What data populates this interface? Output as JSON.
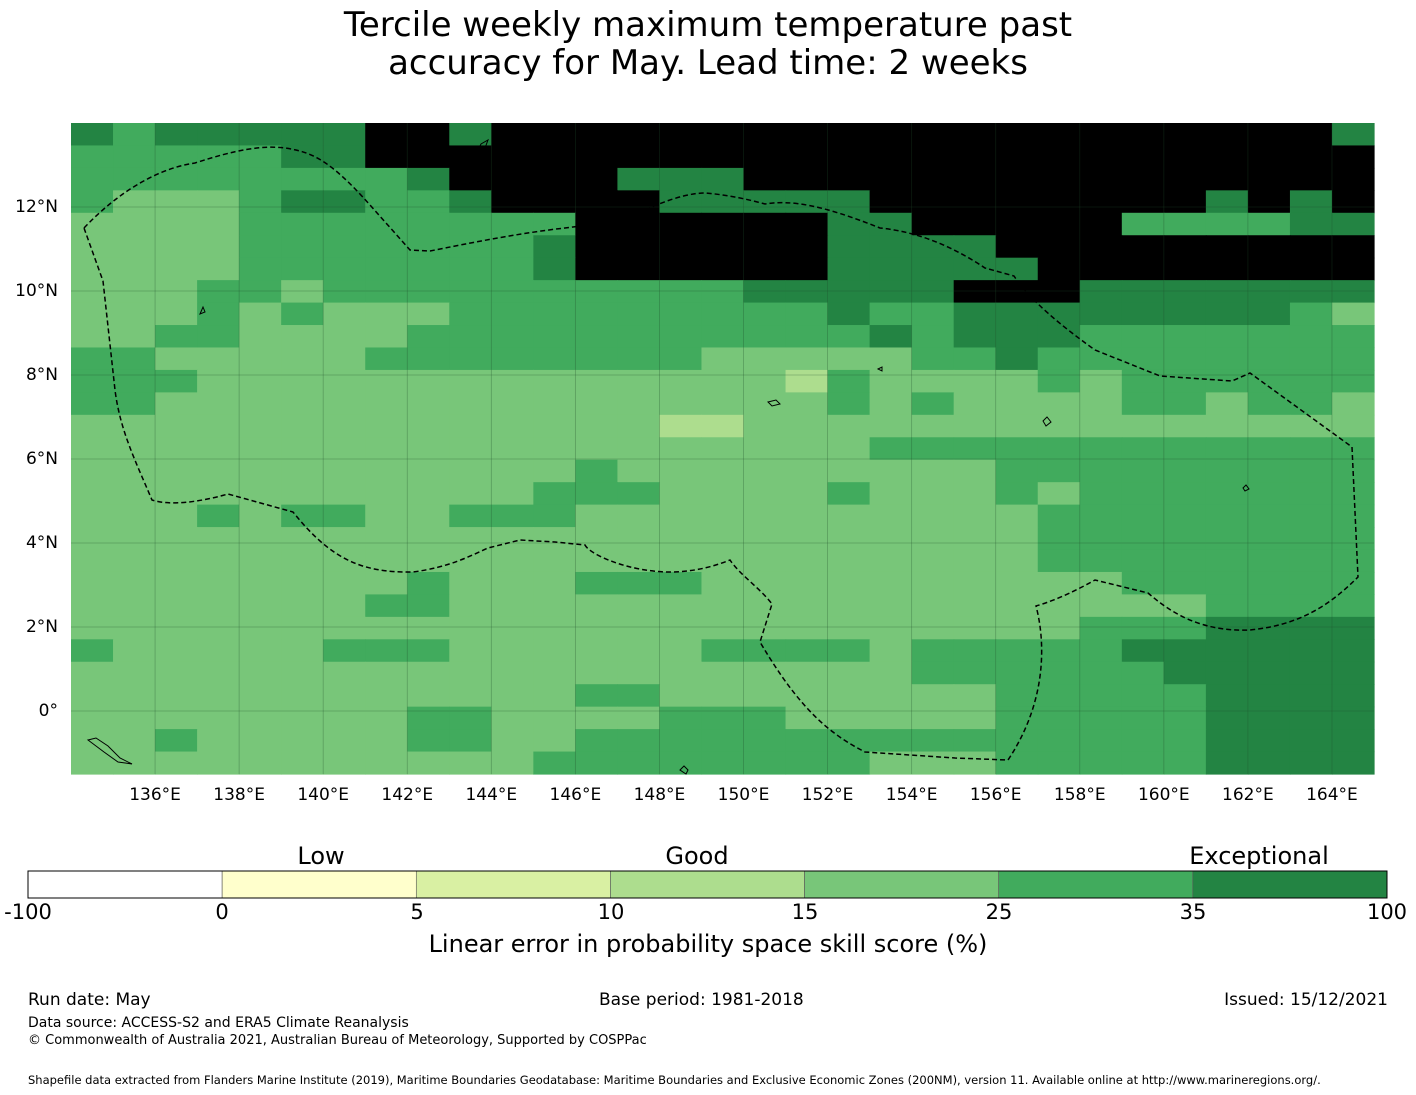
{
  "title_line1": "Tercile weekly maximum temperature past",
  "title_line2": "accuracy for May. Lead time: 2 weeks",
  "map": {
    "lon_labels": [
      "136°E",
      "138°E",
      "140°E",
      "142°E",
      "144°E",
      "146°E",
      "148°E",
      "150°E",
      "152°E",
      "154°E",
      "156°E",
      "158°E",
      "160°E",
      "162°E",
      "164°E"
    ],
    "lat_labels": [
      "12°N",
      "10°N",
      "8°N",
      "6°N",
      "4°N",
      "2°N",
      "0°"
    ],
    "lon_range": [
      134.0,
      165.0
    ],
    "lat_range": [
      -1.5,
      14.0
    ],
    "boundary_style": "dashed",
    "grid_rows": [
      "6566666776777777777777777777776",
      "5555566777777777777777777777777",
      "5555555567777666777777777777777",
      "5444566556777766666777777776767",
      "4444555555557777776677777555566",
      "4444555555567777776666777777777",
      "4444555555567777776666677777777",
      "4445545555555555666667776666666",
      "4445454445555555556556666666654",
      "4455444455555555555656665555555",
      "5544444555555554444455655555555",
      "5554444444444444435444454555555",
      "5544444444444444445454444554554",
      "4444444444444433444444444444444",
      "4444444444444444444555555555555",
      "4444444444445444444444555555555",
      "4444444444455544445444545555555",
      "4445455445554444444444455555555",
      "4444444444444444444444455555555",
      "4444444444444444444444455555555",
      "4444444454445554444444444555555",
      "4444444554444444444444444445555",
      "4444444444444444444444445556666",
      "5444445554444445555455555666666",
      "4444444444444444444455555566666",
      "4444444444445544444444555556666",
      "4444444455444455544444555556666",
      "4454444455445555555555555556666",
      "4444444444455555555444555556666"
    ]
  },
  "colorbar": {
    "category_labels": [
      "Low",
      "Good",
      "Exceptional"
    ],
    "ticks": [
      "-100",
      "0",
      "5",
      "10",
      "15",
      "25",
      "35",
      "100"
    ],
    "colors": [
      "#ffffff",
      "#ffffcc",
      "#d9f0a3",
      "#addd8e",
      "#78c679",
      "#41ab5d",
      "#238443"
    ],
    "label": "Linear error in probability space skill score (%)"
  },
  "footer": {
    "run_date": "Run date: May",
    "base_period": "Base period: 1981-2018",
    "issued": "Issued: 15/12/2021",
    "data_source": "Data source: ACCESS-S2 and ERA5 Climate Reanalysis",
    "copyright": "© Commonwealth of Australia 2021, Australian Bureau of Meteorology, Supported by COSPPac",
    "shapefile": "Shapefile data extracted from Flanders Marine Institute (2019), Maritime Boundaries Geodatabase: Maritime Boundaries and Exclusive Economic Zones (200NM), version 11. Available online at http://www.marineregions.org/."
  }
}
